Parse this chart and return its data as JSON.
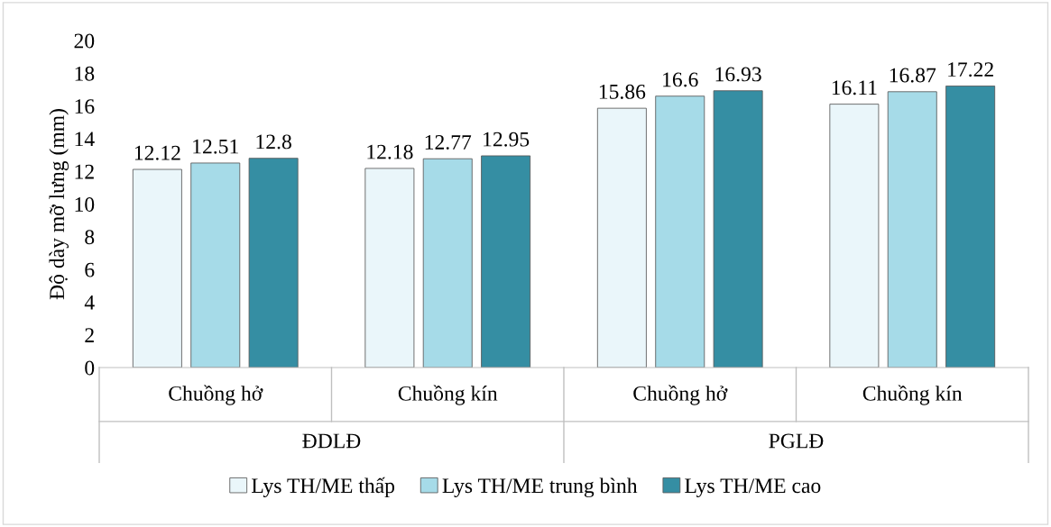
{
  "chart_data": {
    "type": "bar",
    "ylabel": "Độ dày mỡ lưng (mm)",
    "categories": [
      "Chuồng hở",
      "Chuồng kín",
      "Chuồng hở",
      "Chuồng kín"
    ],
    "annotations": [
      "ĐDLĐ",
      "PGLĐ"
    ],
    "series": [
      {
        "name": "Lys TH/ME thấp",
        "color": "#eaf6fa",
        "values": [
          12.12,
          12.18,
          15.86,
          16.11
        ]
      },
      {
        "name": "Lys TH/ME trung bình",
        "color": "#a6dbe8",
        "values": [
          12.51,
          12.77,
          16.6,
          16.87
        ]
      },
      {
        "name": "Lys TH/ME cao",
        "color": "#358ea3",
        "values": [
          12.8,
          12.95,
          16.93,
          17.22
        ]
      }
    ],
    "ylim": [
      0,
      20
    ],
    "yticks": [
      0,
      2,
      4,
      6,
      8,
      10,
      12,
      14,
      16,
      18,
      20
    ],
    "data_labels": true,
    "grid": false,
    "legend": "bottom"
  }
}
